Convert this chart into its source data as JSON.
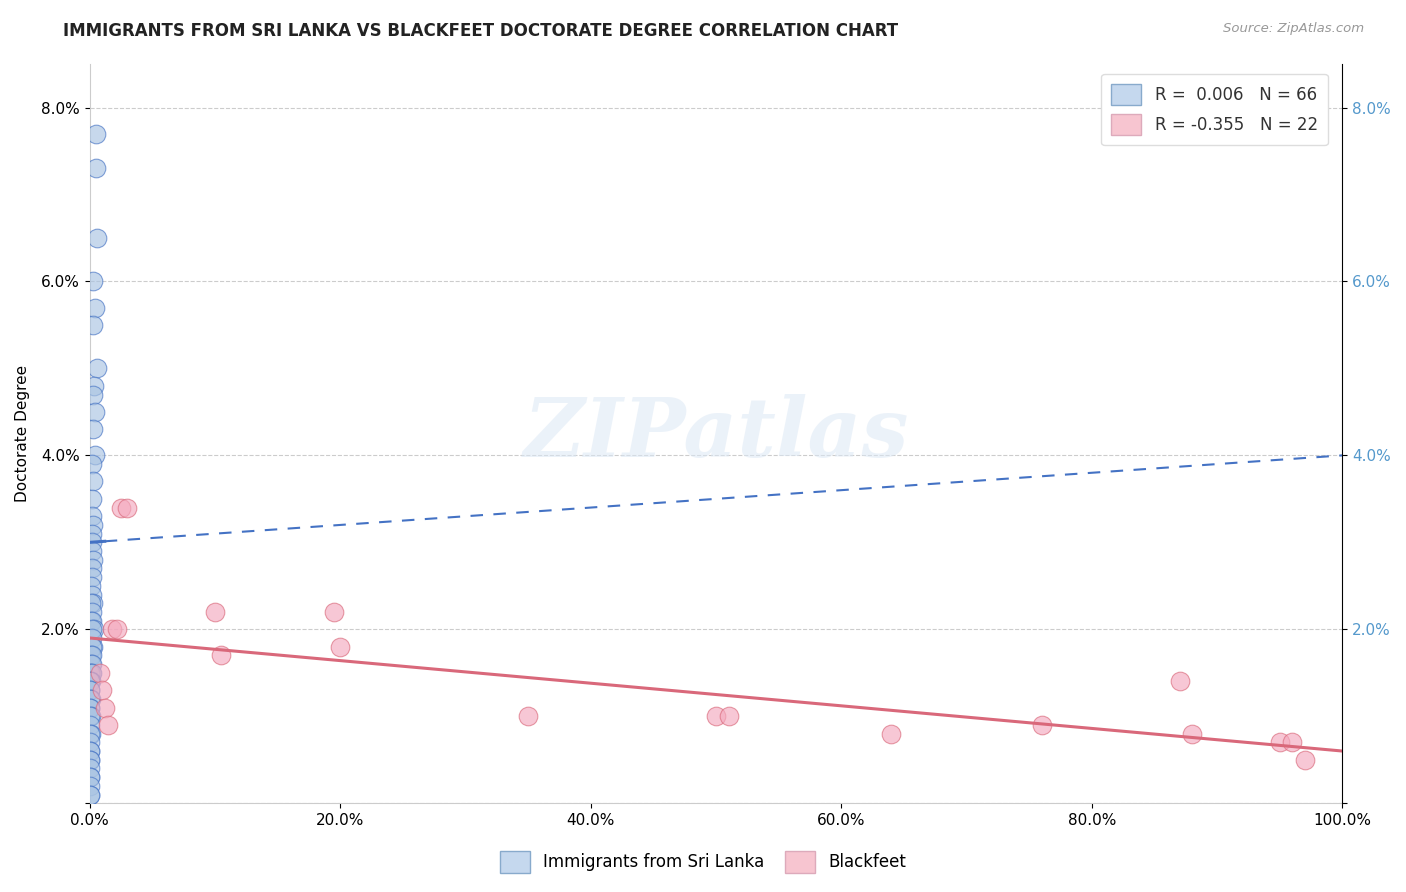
{
  "title": "IMMIGRANTS FROM SRI LANKA VS BLACKFEET DOCTORATE DEGREE CORRELATION CHART",
  "source_text": "Source: ZipAtlas.com",
  "ylabel": "Doctorate Degree",
  "xlim": [
    0,
    1.0
  ],
  "ylim": [
    0,
    0.085
  ],
  "xtick_labels": [
    "0.0%",
    "20.0%",
    "40.0%",
    "60.0%",
    "80.0%",
    "100.0%"
  ],
  "xtick_vals": [
    0.0,
    0.2,
    0.4,
    0.6,
    0.8,
    1.0
  ],
  "ytick_labels": [
    "",
    "2.0%",
    "4.0%",
    "6.0%",
    "8.0%"
  ],
  "ytick_vals": [
    0.0,
    0.02,
    0.04,
    0.06,
    0.08
  ],
  "blue_R": 0.006,
  "blue_N": 66,
  "pink_R": -0.355,
  "pink_N": 22,
  "blue_color": "#aac4e2",
  "pink_color": "#f4aabf",
  "blue_line_color": "#4472c4",
  "pink_line_color": "#d9687a",
  "legend_blue_label": "Immigrants from Sri Lanka",
  "legend_pink_label": "Blackfeet",
  "watermark": "ZIPatlas",
  "blue_scatter_x": [
    0.005,
    0.0048,
    0.0055,
    0.003,
    0.004,
    0.0028,
    0.006,
    0.0038,
    0.0025,
    0.0045,
    0.003,
    0.004,
    0.0022,
    0.0028,
    0.002,
    0.0018,
    0.0025,
    0.0015,
    0.0018,
    0.0022,
    0.0025,
    0.0015,
    0.0018,
    0.0012,
    0.0022,
    0.0025,
    0.001,
    0.0018,
    0.0008,
    0.0022,
    0.0035,
    0.0015,
    0.0022,
    0.0025,
    0.0015,
    0.0008,
    0.0015,
    0.0008,
    0.0018,
    0.0008,
    0.0006,
    0.0015,
    0.0008,
    0.0006,
    0.0005,
    0.0005,
    0.0012,
    0.0006,
    0.0005,
    0.0005,
    0.0012,
    0.0005,
    0.0005,
    0.0012,
    0.0005,
    0.0005,
    0.0004,
    0.0004,
    0.0003,
    0.0003,
    0.0003,
    0.0002,
    0.0001,
    0.0001,
    0.0001,
    0.0001
  ],
  "blue_scatter_y": [
    0.077,
    0.073,
    0.065,
    0.06,
    0.057,
    0.055,
    0.05,
    0.048,
    0.047,
    0.045,
    0.043,
    0.04,
    0.039,
    0.037,
    0.035,
    0.033,
    0.032,
    0.031,
    0.03,
    0.029,
    0.028,
    0.027,
    0.026,
    0.025,
    0.024,
    0.023,
    0.023,
    0.022,
    0.021,
    0.021,
    0.02,
    0.02,
    0.019,
    0.018,
    0.018,
    0.017,
    0.017,
    0.016,
    0.016,
    0.015,
    0.015,
    0.015,
    0.014,
    0.014,
    0.013,
    0.013,
    0.012,
    0.012,
    0.011,
    0.011,
    0.01,
    0.01,
    0.009,
    0.008,
    0.008,
    0.007,
    0.006,
    0.006,
    0.005,
    0.005,
    0.004,
    0.003,
    0.003,
    0.002,
    0.001,
    0.001
  ],
  "pink_scatter_x": [
    0.008,
    0.01,
    0.012,
    0.015,
    0.025,
    0.03,
    0.018,
    0.022,
    0.1,
    0.105,
    0.195,
    0.2,
    0.35,
    0.5,
    0.51,
    0.64,
    0.76,
    0.87,
    0.88,
    0.95,
    0.96,
    0.97
  ],
  "pink_scatter_y": [
    0.015,
    0.013,
    0.011,
    0.009,
    0.034,
    0.034,
    0.02,
    0.02,
    0.022,
    0.017,
    0.022,
    0.018,
    0.01,
    0.01,
    0.01,
    0.008,
    0.009,
    0.014,
    0.008,
    0.007,
    0.007,
    0.005
  ],
  "blue_trend_x": [
    0.0,
    1.0
  ],
  "blue_trend_y": [
    0.03,
    0.04
  ],
  "pink_trend_x": [
    0.0,
    1.0
  ],
  "pink_trend_y": [
    0.019,
    0.006
  ]
}
